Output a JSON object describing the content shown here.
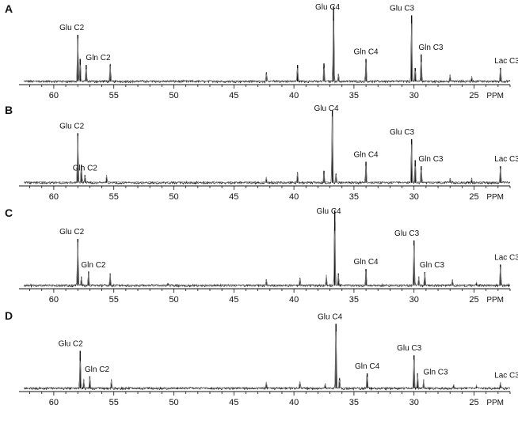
{
  "colors": {
    "trace": "#111111",
    "axis": "#111111",
    "background": "#ffffff"
  },
  "chart_data": [
    {
      "type": "line",
      "panel": "A",
      "xlabel": "PPM",
      "xlim": [
        62.5,
        22.0
      ],
      "xticks": [
        60,
        55,
        50,
        45,
        40,
        35,
        30,
        25
      ],
      "grid": false,
      "peaks": [
        {
          "ppm": 58.0,
          "height": 0.62,
          "label": "Glu C2",
          "label_dppm": 0.5
        },
        {
          "ppm": 57.8,
          "height": 0.3,
          "label": "",
          "label_dppm": 0
        },
        {
          "ppm": 57.3,
          "height": 0.22,
          "label": "Gln C2",
          "label_dppm": -1.0
        },
        {
          "ppm": 55.3,
          "height": 0.22,
          "label": "",
          "label_dppm": 0
        },
        {
          "ppm": 42.3,
          "height": 0.11,
          "label": "",
          "label_dppm": 0
        },
        {
          "ppm": 39.7,
          "height": 0.22,
          "label": "",
          "label_dppm": 0
        },
        {
          "ppm": 37.5,
          "height": 0.24,
          "label": "",
          "label_dppm": 0
        },
        {
          "ppm": 36.7,
          "height": 1.0,
          "label": "Glu C4",
          "label_dppm": 0.5
        },
        {
          "ppm": 36.3,
          "height": 0.1,
          "label": "",
          "label_dppm": 0
        },
        {
          "ppm": 34.0,
          "height": 0.3,
          "label": "Gln C4",
          "label_dppm": 0
        },
        {
          "ppm": 30.2,
          "height": 0.88,
          "label": "Glu C3",
          "label_dppm": 0.8
        },
        {
          "ppm": 29.9,
          "height": 0.18,
          "label": "",
          "label_dppm": 0
        },
        {
          "ppm": 29.4,
          "height": 0.36,
          "label": "Gln C3",
          "label_dppm": -0.8
        },
        {
          "ppm": 27.0,
          "height": 0.09,
          "label": "",
          "label_dppm": 0
        },
        {
          "ppm": 25.2,
          "height": 0.07,
          "label": "",
          "label_dppm": 0
        },
        {
          "ppm": 22.8,
          "height": 0.18,
          "label": "Lac C3",
          "label_dppm": -1.2
        }
      ]
    },
    {
      "type": "line",
      "panel": "B",
      "xlabel": "PPM",
      "xlim": [
        62.5,
        22.0
      ],
      "xticks": [
        60,
        55,
        50,
        45,
        40,
        35,
        30,
        25
      ],
      "grid": false,
      "peaks": [
        {
          "ppm": 58.0,
          "height": 0.66,
          "label": "Glu C2",
          "label_dppm": 0.5
        },
        {
          "ppm": 57.7,
          "height": 0.24,
          "label": "",
          "label_dppm": 0
        },
        {
          "ppm": 57.4,
          "height": 0.1,
          "label": "Gln C2",
          "label_dppm": 0
        },
        {
          "ppm": 55.6,
          "height": 0.1,
          "label": "",
          "label_dppm": 0
        },
        {
          "ppm": 42.3,
          "height": 0.07,
          "label": "",
          "label_dppm": 0
        },
        {
          "ppm": 39.7,
          "height": 0.14,
          "label": "",
          "label_dppm": 0
        },
        {
          "ppm": 37.5,
          "height": 0.16,
          "label": "",
          "label_dppm": 0
        },
        {
          "ppm": 36.8,
          "height": 0.96,
          "label": "Glu C4",
          "label_dppm": 0.5
        },
        {
          "ppm": 36.5,
          "height": 0.12,
          "label": "",
          "label_dppm": 0
        },
        {
          "ppm": 34.0,
          "height": 0.28,
          "label": "Gln C4",
          "label_dppm": 0
        },
        {
          "ppm": 30.2,
          "height": 0.58,
          "label": "Glu C3",
          "label_dppm": 0.8
        },
        {
          "ppm": 29.9,
          "height": 0.3,
          "label": "",
          "label_dppm": 0
        },
        {
          "ppm": 29.4,
          "height": 0.22,
          "label": "Gln C3",
          "label_dppm": -0.8
        },
        {
          "ppm": 27.0,
          "height": 0.05,
          "label": "",
          "label_dppm": 0
        },
        {
          "ppm": 25.2,
          "height": 0.05,
          "label": "",
          "label_dppm": 0
        },
        {
          "ppm": 22.8,
          "height": 0.22,
          "label": "Lac C3",
          "label_dppm": -1.2
        }
      ]
    },
    {
      "type": "line",
      "panel": "C",
      "xlabel": "PPM",
      "xlim": [
        62.5,
        22.0
      ],
      "xticks": [
        60,
        55,
        50,
        45,
        40,
        35,
        30,
        25
      ],
      "grid": false,
      "peaks": [
        {
          "ppm": 58.0,
          "height": 0.62,
          "label": "Glu C2",
          "label_dppm": 0.5
        },
        {
          "ppm": 57.7,
          "height": 0.12,
          "label": "",
          "label_dppm": 0
        },
        {
          "ppm": 57.1,
          "height": 0.18,
          "label": "Gln C2",
          "label_dppm": -0.4
        },
        {
          "ppm": 55.3,
          "height": 0.16,
          "label": "",
          "label_dppm": 0
        },
        {
          "ppm": 50.5,
          "height": 0.03,
          "label": "",
          "label_dppm": 0
        },
        {
          "ppm": 42.3,
          "height": 0.08,
          "label": "",
          "label_dppm": 0
        },
        {
          "ppm": 39.5,
          "height": 0.1,
          "label": "",
          "label_dppm": 0
        },
        {
          "ppm": 37.3,
          "height": 0.14,
          "label": "",
          "label_dppm": 0
        },
        {
          "ppm": 36.6,
          "height": 1.0,
          "label": "Glu C4",
          "label_dppm": 0.5
        },
        {
          "ppm": 36.3,
          "height": 0.16,
          "label": "",
          "label_dppm": 0
        },
        {
          "ppm": 34.0,
          "height": 0.22,
          "label": "Gln C4",
          "label_dppm": 0
        },
        {
          "ppm": 30.0,
          "height": 0.6,
          "label": "Glu C3",
          "label_dppm": 0.6
        },
        {
          "ppm": 29.6,
          "height": 0.12,
          "label": "",
          "label_dppm": 0
        },
        {
          "ppm": 29.1,
          "height": 0.18,
          "label": "Gln C3",
          "label_dppm": -0.6
        },
        {
          "ppm": 26.8,
          "height": 0.08,
          "label": "",
          "label_dppm": 0
        },
        {
          "ppm": 24.8,
          "height": 0.04,
          "label": "",
          "label_dppm": 0
        },
        {
          "ppm": 22.8,
          "height": 0.28,
          "label": "Lac C3",
          "label_dppm": -1.0
        }
      ]
    },
    {
      "type": "line",
      "panel": "D",
      "xlabel": "PPM",
      "xlim": [
        62.5,
        22.0
      ],
      "xticks": [
        60,
        55,
        50,
        45,
        40,
        35,
        30,
        25
      ],
      "grid": false,
      "peaks": [
        {
          "ppm": 57.8,
          "height": 0.5,
          "label": "Glu C2",
          "label_dppm": 0.8
        },
        {
          "ppm": 57.5,
          "height": 0.12,
          "label": "",
          "label_dppm": 0
        },
        {
          "ppm": 57.0,
          "height": 0.16,
          "label": "Gln C2",
          "label_dppm": -0.6
        },
        {
          "ppm": 55.2,
          "height": 0.12,
          "label": "",
          "label_dppm": 0
        },
        {
          "ppm": 42.3,
          "height": 0.08,
          "label": "",
          "label_dppm": 0
        },
        {
          "ppm": 39.5,
          "height": 0.09,
          "label": "",
          "label_dppm": 0
        },
        {
          "ppm": 37.4,
          "height": 0.06,
          "label": "",
          "label_dppm": 0
        },
        {
          "ppm": 36.5,
          "height": 0.86,
          "label": "Glu C4",
          "label_dppm": 0.5
        },
        {
          "ppm": 36.2,
          "height": 0.14,
          "label": "",
          "label_dppm": 0
        },
        {
          "ppm": 33.9,
          "height": 0.2,
          "label": "Gln C4",
          "label_dppm": 0
        },
        {
          "ppm": 30.0,
          "height": 0.44,
          "label": "Glu C3",
          "label_dppm": 0.4
        },
        {
          "ppm": 29.7,
          "height": 0.2,
          "label": "",
          "label_dppm": 0
        },
        {
          "ppm": 29.2,
          "height": 0.12,
          "label": "Gln C3",
          "label_dppm": -1.0
        },
        {
          "ppm": 26.7,
          "height": 0.05,
          "label": "",
          "label_dppm": 0
        },
        {
          "ppm": 24.8,
          "height": 0.04,
          "label": "",
          "label_dppm": 0
        },
        {
          "ppm": 22.8,
          "height": 0.08,
          "label": "Lac C3",
          "label_dppm": -1.2
        }
      ]
    }
  ]
}
